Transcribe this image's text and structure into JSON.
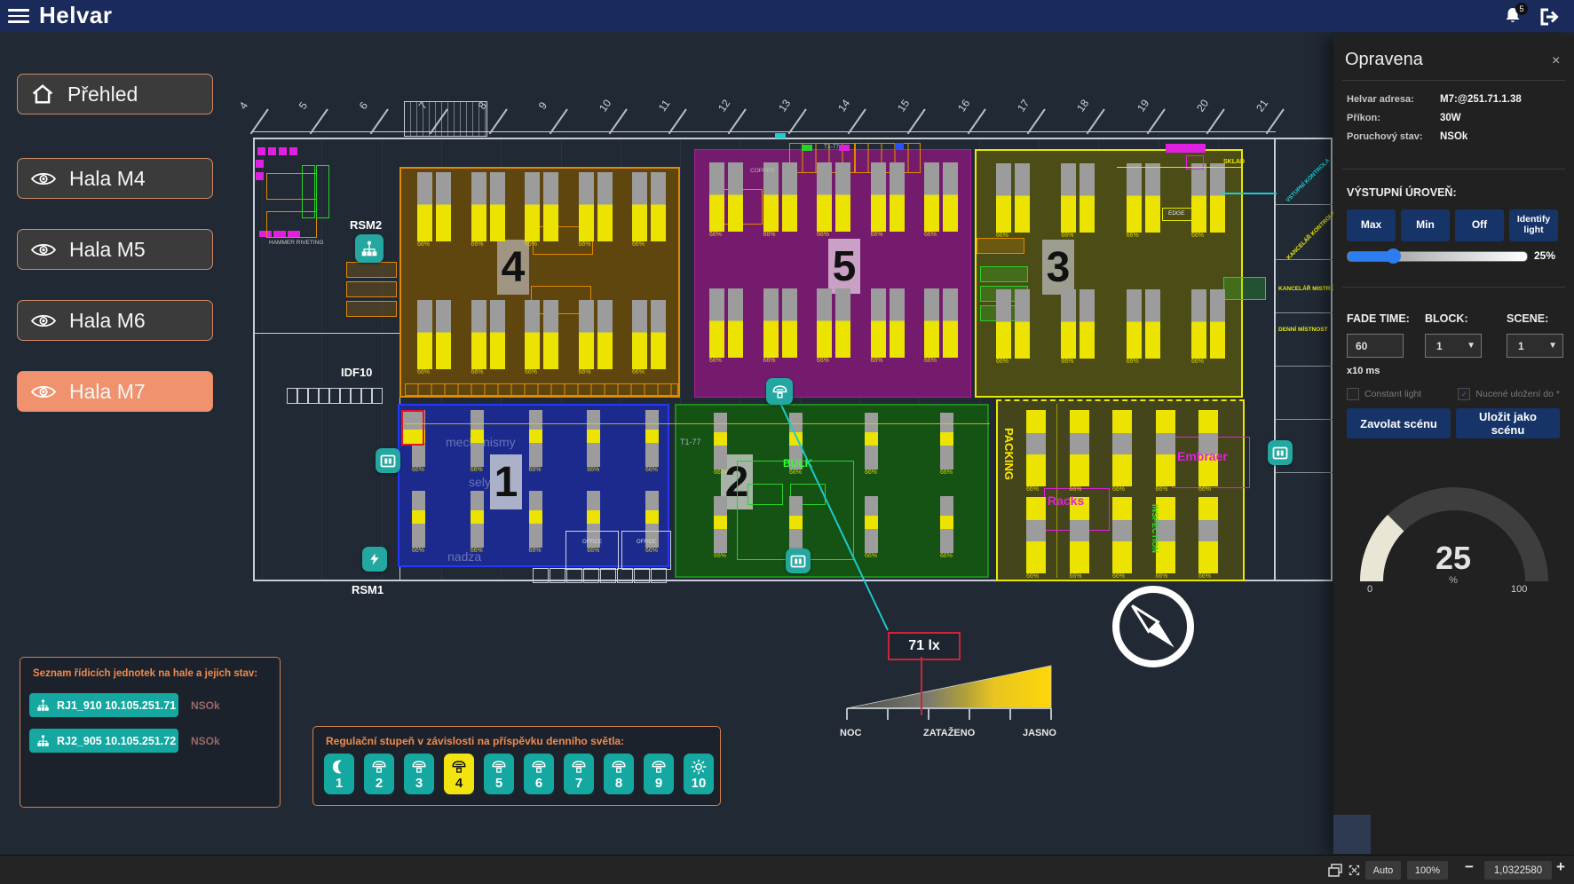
{
  "topbar": {
    "brand": "Helvar",
    "notifications": "5"
  },
  "sidebar": {
    "items": [
      {
        "label": "Přehled",
        "icon": "home",
        "active": false
      },
      {
        "label": "Hala M4",
        "icon": "eye",
        "active": false
      },
      {
        "label": "Hala M5",
        "icon": "eye",
        "active": false
      },
      {
        "label": "Hala M6",
        "icon": "eye",
        "active": false
      },
      {
        "label": "Hala M7",
        "icon": "eye",
        "active": true
      }
    ]
  },
  "plan": {
    "grid_numbers": [
      "4",
      "5",
      "6",
      "7",
      "8",
      "9",
      "10",
      "11",
      "12",
      "13",
      "14",
      "15",
      "16",
      "17",
      "18",
      "19",
      "20",
      "21"
    ],
    "luminaire_label": "66%",
    "zones": [
      {
        "number": "4"
      },
      {
        "number": "5"
      },
      {
        "number": "3"
      },
      {
        "number": "1"
      },
      {
        "number": "2"
      }
    ],
    "labels": {
      "rsm2": "RSM2",
      "idf10": "IDF10",
      "rsm1": "RSM1",
      "hammer": "HAMMER RIVETING",
      "t1": "T1-77",
      "copper": "COPPER",
      "sklad": "SKLAD",
      "edge": "EDGE",
      "office": "OFFICE",
      "bulk": "BULK",
      "packing": "PACKING",
      "racks": "Racks",
      "embraer": "Embraer",
      "inspection": "INSPECTION",
      "mech": "mechanismy",
      "sely": "sely",
      "nadza": "nadza"
    },
    "rooms": [
      "VSTUPNÍ KONTROLA",
      "KANCELÁŘ KONTROLY",
      "KANCELÁŘ MISTRŮ",
      "DENNÍ MÍSTNOST"
    ],
    "sensor": {
      "reading": "71 lx",
      "scale_labels": [
        "NOC",
        "ZATAŽENO",
        "JASNO"
      ]
    }
  },
  "units_panel": {
    "title": "Seznam řídicích jednotek na hale a jejich stav:",
    "units": [
      {
        "name": "RJ1_910 10.105.251.71",
        "status": "NSOk"
      },
      {
        "name": "RJ2_905 10.105.251.72",
        "status": "NSOk"
      }
    ]
  },
  "regulation_panel": {
    "title": "Regulační stupeň v závislosti na příspěvku denního světla:",
    "active_step": 4,
    "steps": [
      {
        "label": "1",
        "icon": "moon"
      },
      {
        "label": "2",
        "icon": "lamp"
      },
      {
        "label": "3",
        "icon": "lamp"
      },
      {
        "label": "4",
        "icon": "lamp"
      },
      {
        "label": "5",
        "icon": "lamp"
      },
      {
        "label": "6",
        "icon": "lamp"
      },
      {
        "label": "7",
        "icon": "lamp"
      },
      {
        "label": "8",
        "icon": "lamp"
      },
      {
        "label": "9",
        "icon": "lamp"
      },
      {
        "label": "10",
        "icon": "sun"
      }
    ]
  },
  "detail_panel": {
    "title": "Opravena",
    "close": "×",
    "fields": [
      {
        "label": "Helvar adresa:",
        "value": "M7:@251.71.1.38"
      },
      {
        "label": "Příkon:",
        "value": "30W"
      },
      {
        "label": "Poruchový stav:",
        "value": "NSOk"
      }
    ],
    "output": {
      "label": "VÝSTUPNÍ ÚROVEŇ:",
      "buttons": [
        "Max",
        "Min",
        "Off",
        "Identify light"
      ],
      "percent": 25,
      "percent_label": "25%"
    },
    "fade": {
      "label": "FADE TIME:",
      "value": "60",
      "unit": "x10 ms"
    },
    "block": {
      "label": "BLOCK:",
      "value": "1"
    },
    "scene": {
      "label": "SCENE:",
      "value": "1"
    },
    "checkboxes": [
      {
        "label": "Constant light",
        "checked": false
      },
      {
        "label": "Nucené uložení do *",
        "checked": true
      }
    ],
    "actions": [
      "Zavolat scénu",
      "Uložit jako scénu"
    ],
    "gauge": {
      "value": "25",
      "unit": "%",
      "min": "0",
      "max": "100",
      "percent": 25
    }
  },
  "statusbar": {
    "auto": "Auto",
    "zoom": "100%",
    "minus": "−",
    "scale": "1,0322580",
    "plus": "+"
  }
}
